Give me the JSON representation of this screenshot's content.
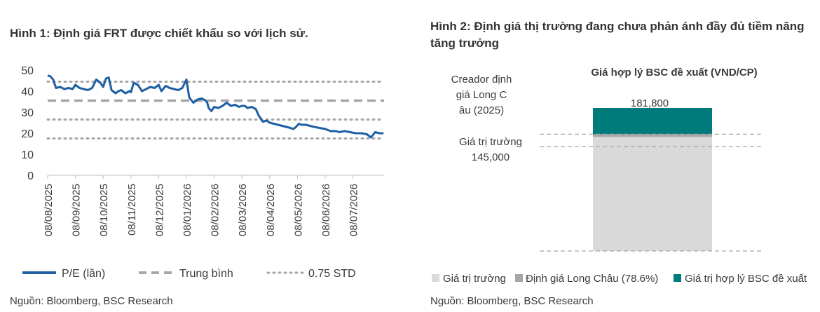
{
  "figure1": {
    "title": "Hình 1: Định giá FRT được chiết khấu so với lịch sử.",
    "source": "Nguồn: Bloomberg, BSC Research"
  },
  "figure2": {
    "title": "Hình 2: Định giá thị trường đang chưa phản ánh đầy đủ tiềm năng tăng trưởng",
    "source": "Nguồn: Bloomberg, BSC Research"
  },
  "colors": {
    "pe_line": "#1f5fa3",
    "mean_line": "#a6a6a6",
    "std_line": "#a6a6a6",
    "market_value": "#d9d9d9",
    "long_chau": "#a6a6a6",
    "bsc_fair": "#007a7a"
  },
  "chart_data": [
    {
      "type": "line",
      "title": "",
      "ylim": [
        0,
        50
      ],
      "yticks": [
        "0",
        "5",
        "10",
        "15",
        "20",
        "25",
        "30",
        "35",
        "40",
        "45",
        "50"
      ],
      "xticks": [
        "08/08/2025",
        "08/09/2025",
        "08/10/2025",
        "08/11/2025",
        "08/12/2025",
        "08/01/2026",
        "08/02/2026",
        "08/03/2026",
        "08/04/2026",
        "08/05/2026",
        "08/06/2026",
        "08/07/2026"
      ],
      "legend": [
        "P/E (lần)",
        "Trung bình",
        "0.75 STD"
      ],
      "legend_position": "bottom",
      "series": [
        {
          "name": "P/E (lần)",
          "style": "solid",
          "x": [
            0,
            0.1,
            0.2,
            0.3,
            0.45,
            0.6,
            0.75,
            0.9,
            1.0,
            1.15,
            1.3,
            1.45,
            1.6,
            1.75,
            1.9,
            2.0,
            2.1,
            2.2,
            2.3,
            2.45,
            2.55,
            2.65,
            2.8,
            2.95,
            3.0,
            3.1,
            3.25,
            3.4,
            3.55,
            3.7,
            3.85,
            4.0,
            4.1,
            4.25,
            4.4,
            4.55,
            4.7,
            4.85,
            5.0,
            5.1,
            5.25,
            5.4,
            5.55,
            5.7,
            5.75,
            5.8,
            5.9,
            6.0,
            6.15,
            6.3,
            6.45,
            6.6,
            6.75,
            6.9,
            7.0,
            7.1,
            7.2,
            7.35,
            7.5,
            7.6,
            7.75,
            7.9,
            8.0,
            8.15,
            8.3,
            8.45,
            8.6,
            8.75,
            8.85,
            8.95,
            9.05,
            9.15,
            9.3,
            9.45,
            9.6,
            9.8,
            10.0,
            10.2,
            10.4,
            10.5,
            10.7,
            10.9,
            11.1,
            11.3,
            11.5,
            11.65,
            11.8,
            11.95,
            12.1
          ],
          "values": [
            47.5,
            47.0,
            45.5,
            41.5,
            42.0,
            41.0,
            41.5,
            41.0,
            43.0,
            41.5,
            41.0,
            40.5,
            41.5,
            45.5,
            44.0,
            42.0,
            46.0,
            46.5,
            40.5,
            39.0,
            40.0,
            40.5,
            39.0,
            40.0,
            39.5,
            44.0,
            43.0,
            40.0,
            41.0,
            42.0,
            41.5,
            43.0,
            40.0,
            42.5,
            41.5,
            41.0,
            40.5,
            41.5,
            45.5,
            37.0,
            34.5,
            36.0,
            36.5,
            35.5,
            34.5,
            32.0,
            30.5,
            32.5,
            32.0,
            33.0,
            34.5,
            33.0,
            33.5,
            32.5,
            33.0,
            33.0,
            32.0,
            32.5,
            31.5,
            28.5,
            25.5,
            26.0,
            25.0,
            24.5,
            24.0,
            23.5,
            23.0,
            22.5,
            22.0,
            23.0,
            24.5,
            24.0,
            24.0,
            23.5,
            23.0,
            22.5,
            22.0,
            21.0,
            21.0,
            20.5,
            21.0,
            20.5,
            20.0,
            20.0,
            19.5,
            18.0,
            20.5,
            20.0,
            20.0
          ]
        },
        {
          "name": "Trung bình",
          "style": "dashed",
          "value": 35.5
        },
        {
          "name": "0.75 STD",
          "style": "dotted",
          "values": [
            44.5,
            26.5,
            17.5
          ]
        }
      ]
    },
    {
      "type": "bar",
      "title": "Giá hợp lý BSC đề xuất (VND/CP)",
      "stacked": true,
      "legend": [
        "Giá trị trường",
        "Định giá Long Châu (78.6%)",
        "Giá trị hợp lý BSC đề xuất"
      ],
      "legend_position": "bottom",
      "annotations": {
        "long_chau": "Creador định giá Long Châu (2025)",
        "market_label": "Giá trị trường",
        "market_value": "145,000",
        "top_value": "181,800"
      },
      "values": {
        "market_value": 145000,
        "long_chau_band": 3500,
        "total": 181800
      }
    }
  ]
}
